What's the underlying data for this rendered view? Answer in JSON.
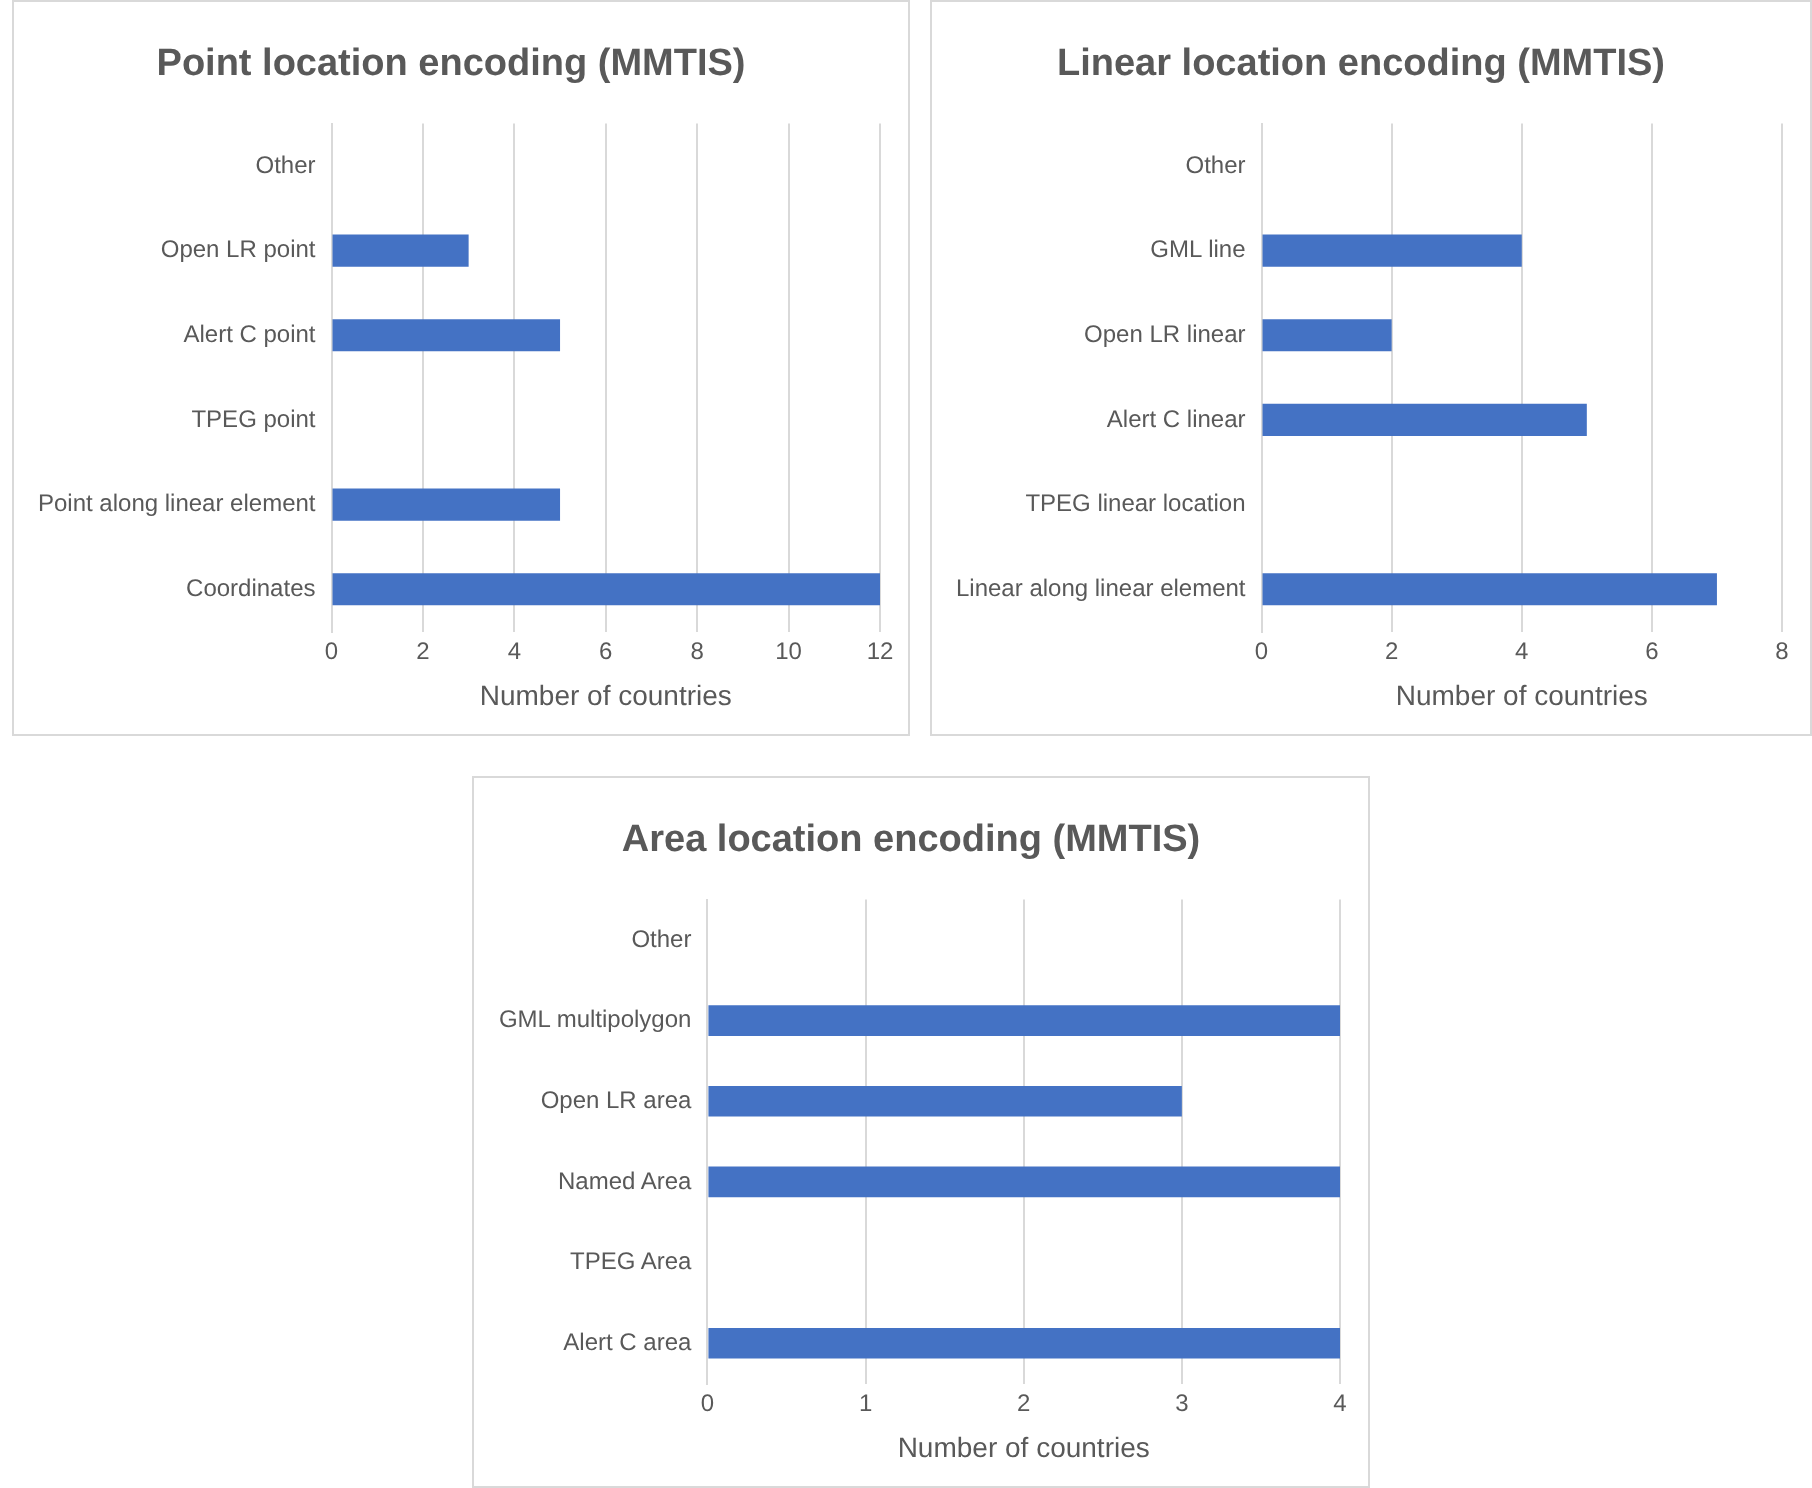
{
  "chart_data": [
    {
      "type": "bar",
      "orientation": "horizontal",
      "title": "Point location encoding (MMTIS)",
      "xlabel": "Number of countries",
      "categories": [
        "Other",
        "Open LR point",
        "Alert C point",
        "TPEG point",
        "Point along linear element",
        "Coordinates"
      ],
      "values": [
        0,
        3,
        5,
        0,
        5,
        12
      ],
      "color": "#4472c4",
      "xlim": [
        0,
        12
      ],
      "xticks": [
        0,
        2,
        4,
        6,
        8,
        10,
        12
      ],
      "grid": "x",
      "legend": false
    },
    {
      "type": "bar",
      "orientation": "horizontal",
      "title": "Linear location encoding (MMTIS)",
      "xlabel": "Number of countries",
      "categories": [
        "Other",
        "GML line",
        "Open LR linear",
        "Alert C linear",
        "TPEG linear location",
        "Linear along linear element"
      ],
      "values": [
        0,
        4,
        2,
        5,
        0,
        7
      ],
      "color": "#4472c4",
      "xlim": [
        0,
        8
      ],
      "xticks": [
        0,
        2,
        4,
        6,
        8
      ],
      "grid": "x",
      "legend": false
    },
    {
      "type": "bar",
      "orientation": "horizontal",
      "title": "Area location encoding (MMTIS)",
      "xlabel": "Number of countries",
      "categories": [
        "Other",
        "GML multipolygon",
        "Open LR area",
        "Named Area",
        "TPEG Area",
        "Alert C area"
      ],
      "values": [
        0,
        4,
        3,
        4,
        0,
        4
      ],
      "color": "#4472c4",
      "xlim": [
        0,
        4
      ],
      "xticks": [
        0,
        1,
        2,
        3,
        4
      ],
      "grid": "x",
      "legend": false
    }
  ]
}
